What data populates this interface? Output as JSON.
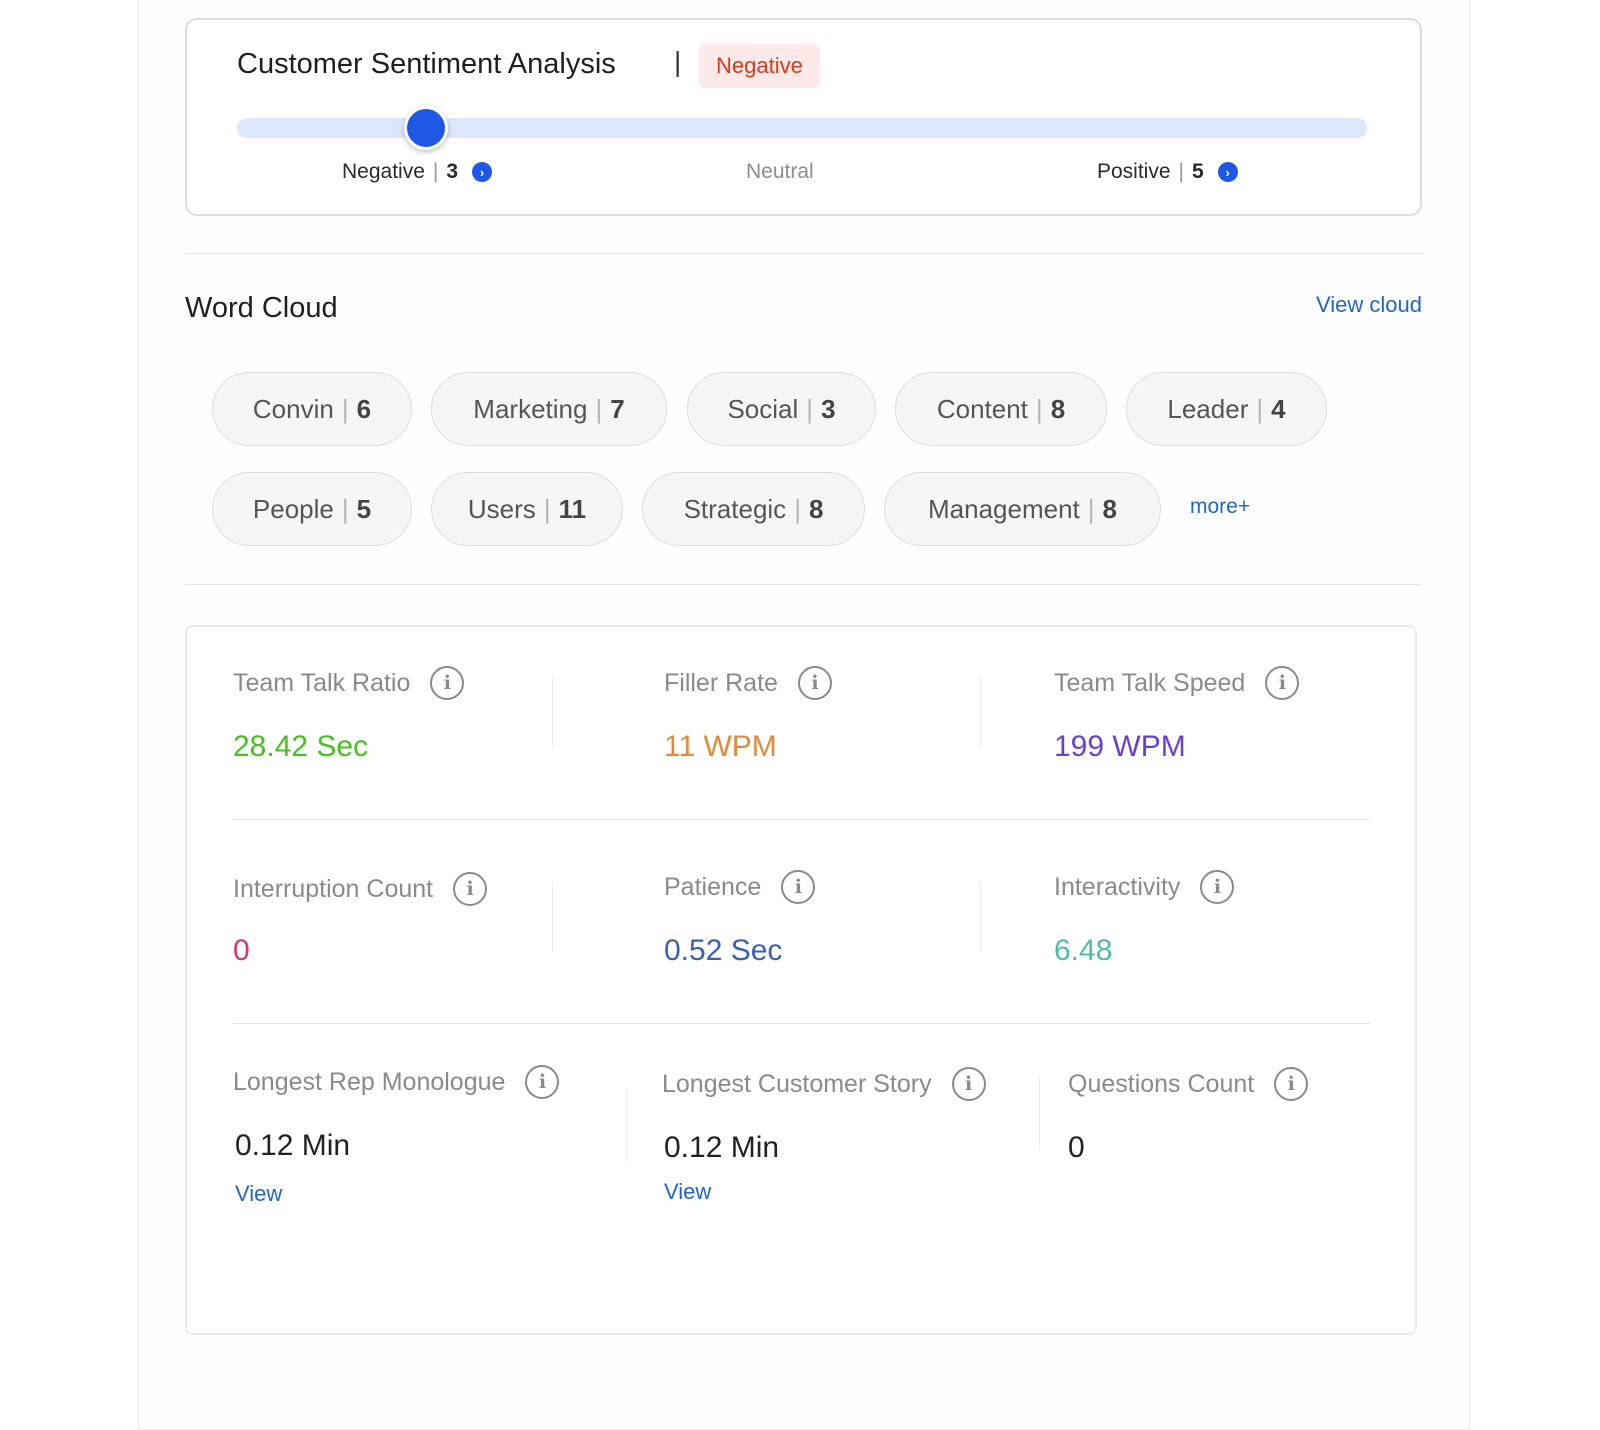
{
  "sentiment": {
    "title": "Customer Sentiment Analysis",
    "separator": "|",
    "badge": "Negative",
    "slider_value": 0.167,
    "negative_label": "Negative",
    "negative_count": "3",
    "neutral_label": "Neutral",
    "positive_label": "Positive",
    "positive_count": "5",
    "count_separator": "|"
  },
  "word_cloud": {
    "title": "Word Cloud",
    "view_link": "View cloud",
    "more_link": "more+",
    "words": [
      {
        "word": "Convin",
        "count": "6"
      },
      {
        "word": "Marketing",
        "count": "7"
      },
      {
        "word": "Social",
        "count": "3"
      },
      {
        "word": "Content",
        "count": "8"
      },
      {
        "word": "Leader",
        "count": "4"
      },
      {
        "word": "People",
        "count": "5"
      },
      {
        "word": "Users",
        "count": "11"
      },
      {
        "word": "Strategic",
        "count": "8"
      },
      {
        "word": "Management",
        "count": "8"
      }
    ]
  },
  "metrics": {
    "team_talk_ratio": {
      "label": "Team Talk Ratio",
      "value": "28.42 Sec",
      "color": "#46c21e"
    },
    "filler_rate": {
      "label": "Filler Rate",
      "value": "11 WPM",
      "color": "#e08b3c"
    },
    "team_talk_speed": {
      "label": "Team Talk Speed",
      "value": "199 WPM",
      "color": "#6a3fd6"
    },
    "interruption_count": {
      "label": "Interruption Count",
      "value": "0",
      "color": "#d6386e"
    },
    "patience": {
      "label": "Patience",
      "value": "0.52 Sec",
      "color": "#3a5fb5"
    },
    "interactivity": {
      "label": "Interactivity",
      "value": "6.48",
      "color": "#4dbf9a"
    },
    "longest_rep_monologue": {
      "label": "Longest Rep Monologue",
      "value": "0.12 Min",
      "link": "View",
      "color": "#222222"
    },
    "longest_customer_story": {
      "label": "Longest Customer Story",
      "value": "0.12 Min",
      "link": "View",
      "color": "#222222"
    },
    "questions_count": {
      "label": "Questions Count",
      "value": "0",
      "color": "#222222"
    }
  },
  "icons": {
    "info": "info-icon",
    "chevron": "chevron-right-icon"
  }
}
